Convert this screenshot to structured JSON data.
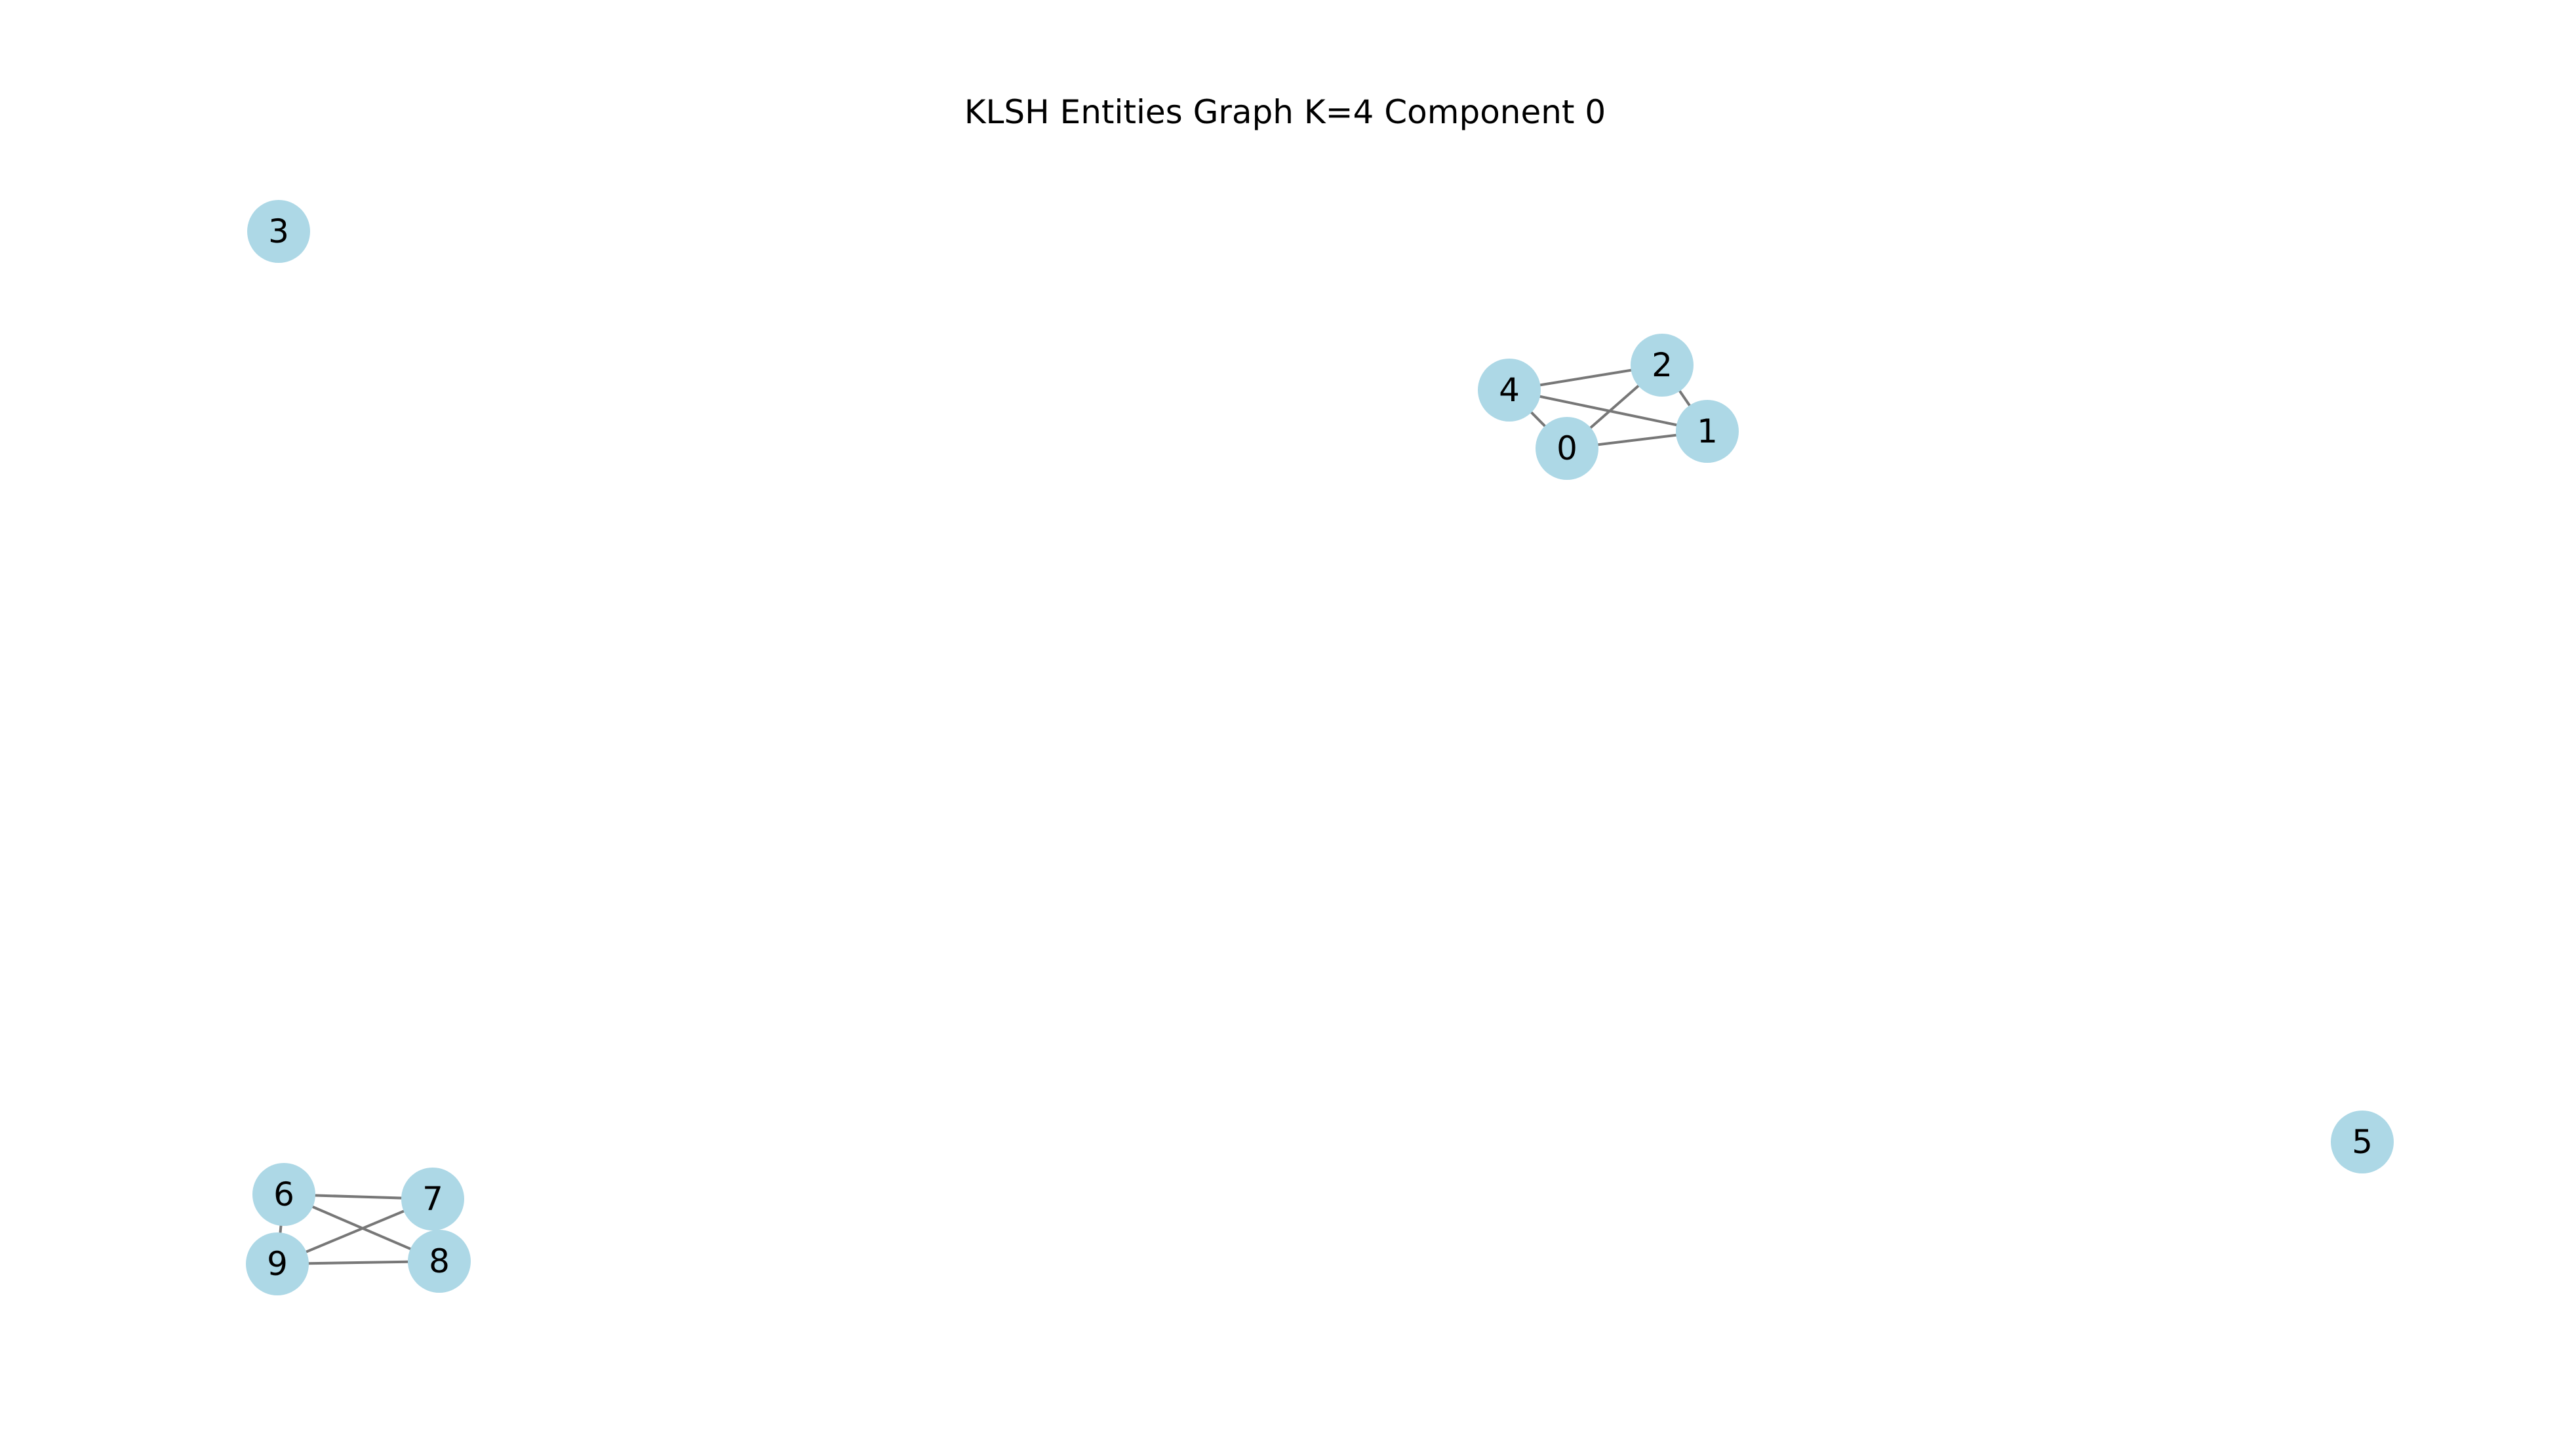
{
  "title": "KLSH Entities Graph K=4 Component 0",
  "colors": {
    "node_fill": "#add8e6",
    "edge_stroke": "#777777",
    "label_text": "#000000",
    "background": "#ffffff"
  },
  "nodes": [
    {
      "id": "0",
      "label": "0"
    },
    {
      "id": "1",
      "label": "1"
    },
    {
      "id": "2",
      "label": "2"
    },
    {
      "id": "3",
      "label": "3"
    },
    {
      "id": "4",
      "label": "4"
    },
    {
      "id": "5",
      "label": "5"
    },
    {
      "id": "6",
      "label": "6"
    },
    {
      "id": "7",
      "label": "7"
    },
    {
      "id": "8",
      "label": "8"
    },
    {
      "id": "9",
      "label": "9"
    }
  ],
  "edges": [
    {
      "source": "4",
      "target": "2"
    },
    {
      "source": "4",
      "target": "1"
    },
    {
      "source": "4",
      "target": "0"
    },
    {
      "source": "0",
      "target": "2"
    },
    {
      "source": "0",
      "target": "1"
    },
    {
      "source": "2",
      "target": "1"
    },
    {
      "source": "6",
      "target": "7"
    },
    {
      "source": "6",
      "target": "8"
    },
    {
      "source": "6",
      "target": "9"
    },
    {
      "source": "9",
      "target": "7"
    },
    {
      "source": "9",
      "target": "8"
    }
  ]
}
